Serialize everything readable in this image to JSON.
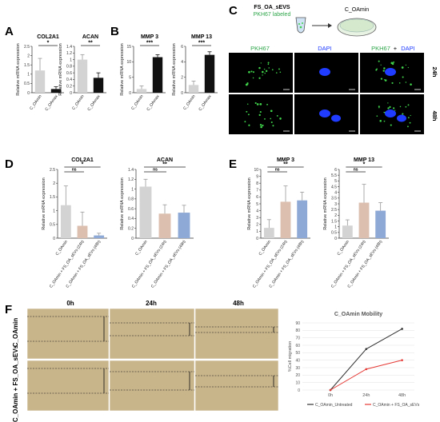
{
  "panel_letters": [
    "A",
    "B",
    "C",
    "D",
    "E",
    "F"
  ],
  "ylabel": "Relative mRNA expression",
  "colors": {
    "gray": "#d3d3d3",
    "black": "#111111",
    "tan": "#dcbfae",
    "blue": "#8ea9d6",
    "cell_bg": "#000000",
    "fluor_green": "#3fd24a",
    "fluor_blue": "#1f3cff",
    "scratch_bg": "#c8b58a",
    "line_untreated": "#333333",
    "line_evs": "#e53935"
  },
  "panelC": {
    "schematic_source": "FS_OA_sEVS",
    "schematic_stain": "PKH67 labeled",
    "schematic_target": "C_OAmin",
    "col_labels": [
      "PKH67",
      "DAPI",
      "PKH67",
      "DAPI"
    ],
    "merge_sep": "+",
    "row_labels": [
      "24h",
      "48h"
    ]
  },
  "panelF": {
    "col_labels": [
      "0h",
      "24h",
      "48h"
    ],
    "row_labels": [
      "C_OAmin",
      "C_OAmin + FS_OA_sEVs"
    ]
  },
  "chart_data": [
    {
      "id": "A1",
      "type": "bar",
      "title": "COL2A1",
      "categories": [
        "C_OAmin",
        "C_OAmax"
      ],
      "values": [
        1.2,
        0.2
      ],
      "errors": [
        0.65,
        0.12
      ],
      "ylim": [
        0,
        2.5
      ],
      "yticks": [
        0,
        0.5,
        1,
        1.5,
        2,
        2.5
      ],
      "bar_colors": [
        "gray",
        "black"
      ],
      "significance": [
        {
          "from": 0,
          "to": 1,
          "label": "*"
        }
      ]
    },
    {
      "id": "A2",
      "type": "bar",
      "title": "ACAN",
      "categories": [
        "C_OAmin",
        "C_OAmax"
      ],
      "values": [
        1.0,
        0.45
      ],
      "errors": [
        0.15,
        0.15
      ],
      "ylim": [
        0,
        1.4
      ],
      "yticks": [
        0,
        0.2,
        0.4,
        0.6,
        0.8,
        1,
        1.2,
        1.4
      ],
      "bar_colors": [
        "gray",
        "black"
      ],
      "significance": [
        {
          "from": 0,
          "to": 1,
          "label": "**"
        }
      ]
    },
    {
      "id": "B1",
      "type": "bar",
      "title": "MMP 3",
      "categories": [
        "C_OAmin",
        "C_OAmax"
      ],
      "values": [
        1.2,
        11.5
      ],
      "errors": [
        1.0,
        0.8
      ],
      "ylim": [
        0,
        15
      ],
      "yticks": [
        0,
        5,
        10,
        15
      ],
      "bar_colors": [
        "gray",
        "black"
      ],
      "significance": [
        {
          "from": 0,
          "to": 1,
          "label": "***"
        }
      ]
    },
    {
      "id": "B2",
      "type": "bar",
      "title": "MMP 13",
      "categories": [
        "C_OAmin",
        "C_OAmax"
      ],
      "values": [
        1.0,
        4.9
      ],
      "errors": [
        0.5,
        0.4
      ],
      "ylim": [
        0,
        6
      ],
      "yticks": [
        0,
        2,
        4,
        6
      ],
      "bar_colors": [
        "gray",
        "black"
      ],
      "significance": [
        {
          "from": 0,
          "to": 1,
          "label": "***"
        }
      ]
    },
    {
      "id": "D1",
      "type": "bar",
      "title": "COL2A1",
      "categories": [
        "C_OAmin",
        "C_OAmin + FS_OA_sEVs (24h)",
        "C_OAmin + FS_OA_sEVs (48h)"
      ],
      "values": [
        1.2,
        0.45,
        0.1
      ],
      "errors": [
        0.7,
        0.5,
        0.08
      ],
      "ylim": [
        0,
        2.5
      ],
      "yticks": [
        0,
        0.5,
        1,
        1.5,
        2,
        2.5
      ],
      "bar_colors": [
        "gray",
        "tan",
        "blue"
      ],
      "significance": [
        {
          "from": 0,
          "to": 1,
          "label": "ns"
        },
        {
          "from": 0,
          "to": 2,
          "label": "*"
        }
      ]
    },
    {
      "id": "D2",
      "type": "bar",
      "title": "ACAN",
      "categories": [
        "C_OAmin",
        "C_OAmin + FS_OA_sEVs (24h)",
        "C_OAmin + FS_OA_sEVs (48h)"
      ],
      "values": [
        1.05,
        0.5,
        0.52
      ],
      "errors": [
        0.15,
        0.18,
        0.15
      ],
      "ylim": [
        0,
        1.4
      ],
      "yticks": [
        0,
        0.2,
        0.4,
        0.6,
        0.8,
        1,
        1.2,
        1.4
      ],
      "bar_colors": [
        "gray",
        "tan",
        "blue"
      ],
      "significance": [
        {
          "from": 0,
          "to": 1,
          "label": "ns"
        },
        {
          "from": 0,
          "to": 2,
          "label": "**"
        }
      ]
    },
    {
      "id": "E1",
      "type": "bar",
      "title": "MMP 3",
      "categories": [
        "C_OAmin",
        "C_OAmin + FS_OA_sEVs (24h)",
        "C_OAmin + FS_OA_sEVs (48h)"
      ],
      "values": [
        1.5,
        5.3,
        5.5
      ],
      "errors": [
        1.2,
        2.3,
        1.2
      ],
      "ylim": [
        0,
        10
      ],
      "yticks": [
        0,
        1,
        2,
        3,
        4,
        5,
        6,
        7,
        8,
        9,
        10
      ],
      "bar_colors": [
        "gray",
        "tan",
        "blue"
      ],
      "significance": [
        {
          "from": 0,
          "to": 1,
          "label": "ns"
        },
        {
          "from": 0,
          "to": 2,
          "label": "**"
        }
      ]
    },
    {
      "id": "E2",
      "type": "bar",
      "title": "MMP 13",
      "categories": [
        "C_OAmin",
        "C_OAmin + FS_OA_sEVs (24h)",
        "C_OAmin + FS_OA_sEVs (48h)"
      ],
      "values": [
        1.1,
        3.1,
        2.4
      ],
      "errors": [
        0.5,
        1.6,
        0.7
      ],
      "ylim": [
        0,
        6
      ],
      "yticks": [
        0,
        0.5,
        1,
        1.5,
        2,
        2.5,
        3,
        3.5,
        4,
        4.5,
        5,
        5.5,
        6
      ],
      "bar_colors": [
        "gray",
        "tan",
        "blue"
      ],
      "significance": [
        {
          "from": 0,
          "to": 1,
          "label": "ns"
        },
        {
          "from": 0,
          "to": 2,
          "label": "*"
        }
      ]
    },
    {
      "id": "F",
      "type": "line",
      "title": "C_OAmin Mobility",
      "ylabel": "%Cell migration",
      "x": [
        "0h",
        "24h",
        "48h"
      ],
      "ylim": [
        0,
        90
      ],
      "yticks": [
        0,
        10,
        20,
        30,
        40,
        50,
        60,
        70,
        80,
        90
      ],
      "series": [
        {
          "name": "C_OAmin_Untreated",
          "values": [
            0,
            55,
            82
          ],
          "color": "line_untreated"
        },
        {
          "name": "C_OAmin + FS_OA_sEVs",
          "values": [
            0,
            28,
            40
          ],
          "color": "line_evs"
        }
      ],
      "legend": "bottom"
    }
  ]
}
